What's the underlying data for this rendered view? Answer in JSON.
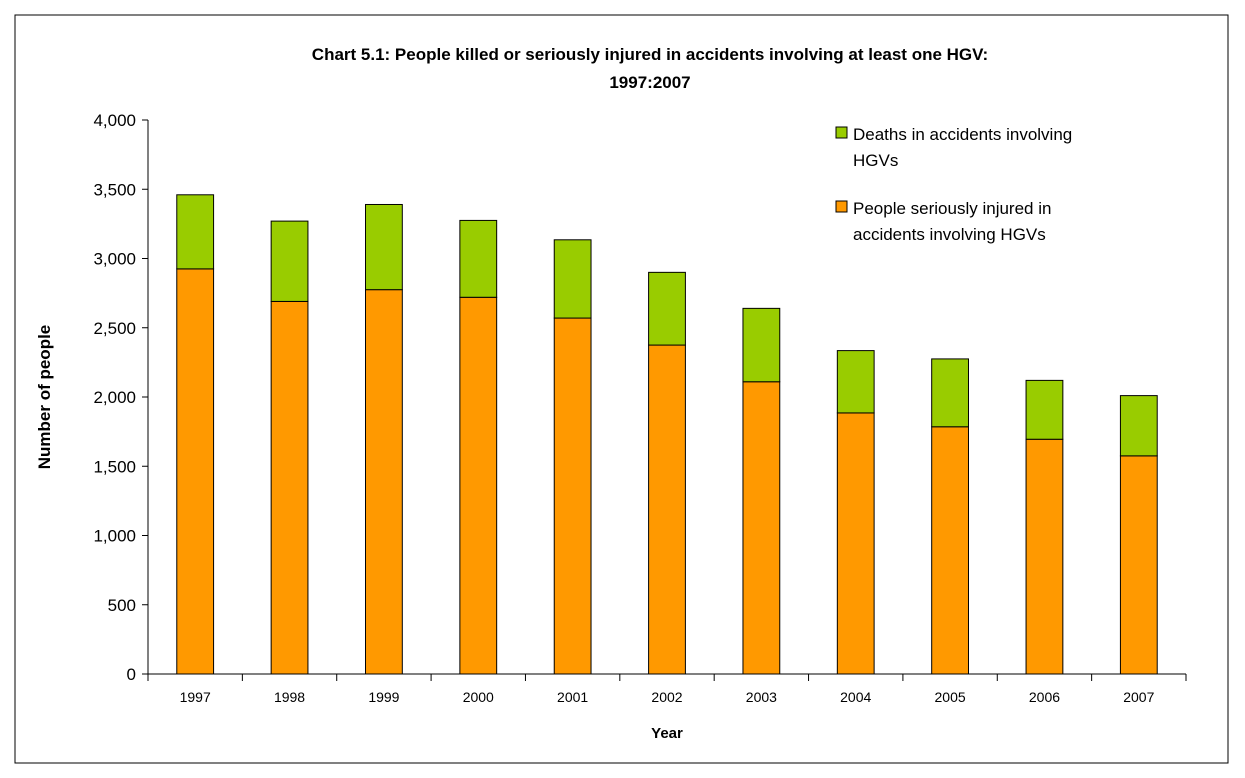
{
  "chart_data": {
    "type": "bar",
    "stacked": true,
    "title": "Chart 5.1: People killed or seriously injured in accidents involving at least one HGV:",
    "subtitle": "1997:2007",
    "xlabel": "Year",
    "ylabel": "Number of people",
    "ylim": [
      0,
      4000
    ],
    "ytick_step": 500,
    "yticks": [
      "0",
      "500",
      "1,000",
      "1,500",
      "2,000",
      "2,500",
      "3,000",
      "3,500",
      "4,000"
    ],
    "categories": [
      "1997",
      "1998",
      "1999",
      "2000",
      "2001",
      "2002",
      "2003",
      "2004",
      "2005",
      "2006",
      "2007"
    ],
    "series": [
      {
        "name": "People seriously injured in accidents involving HGVs",
        "color": "#ff9900",
        "values": [
          2925,
          2690,
          2775,
          2720,
          2570,
          2375,
          2110,
          1885,
          1785,
          1695,
          1575
        ]
      },
      {
        "name": "Deaths in accidents involving HGVs",
        "color": "#99cc00",
        "values": [
          535,
          580,
          615,
          555,
          565,
          525,
          530,
          450,
          490,
          425,
          435
        ]
      }
    ],
    "legend": {
      "position": "top-right",
      "entries": [
        {
          "lines": [
            "Deaths in accidents involving",
            "HGVs"
          ],
          "color": "#99cc00"
        },
        {
          "lines": [
            "People seriously injured in",
            "accidents involving HGVs"
          ],
          "color": "#ff9900"
        }
      ]
    },
    "grid": false
  }
}
